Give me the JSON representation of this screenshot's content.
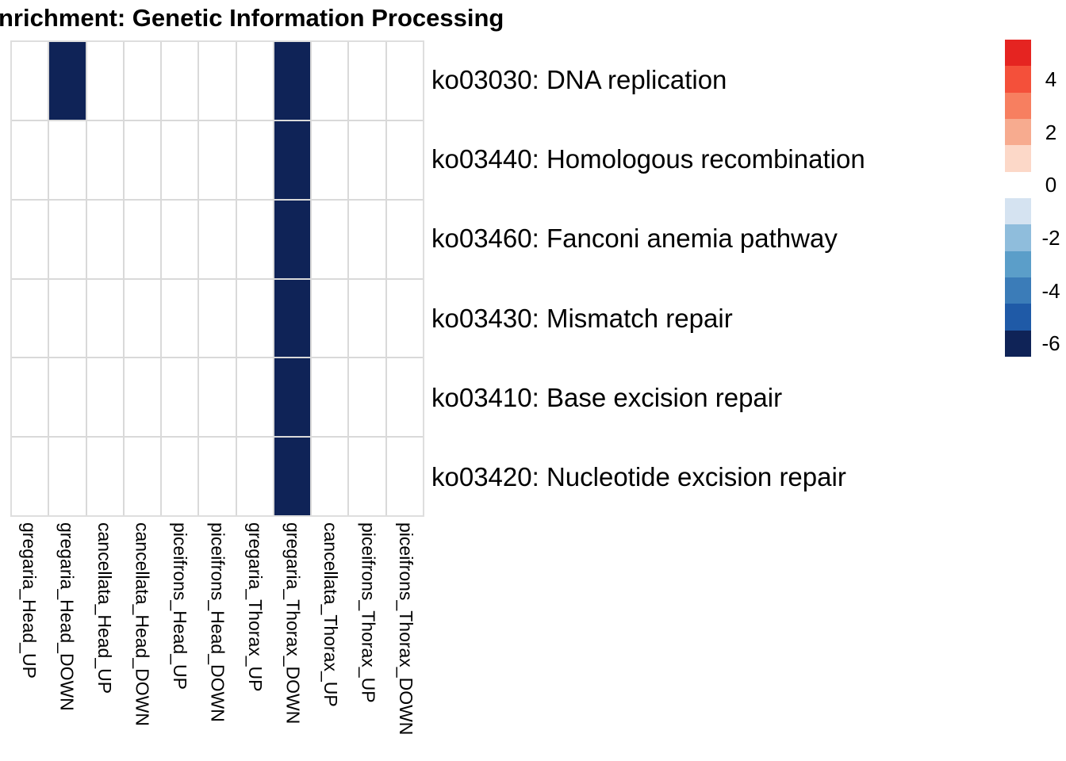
{
  "chart_data": {
    "type": "heatmap",
    "title": "nrichment: Genetic Information Processing",
    "columns": [
      "gregaria_Head_UP",
      "gregaria_Head_DOWN",
      "cancellata_Head_UP",
      "cancellata_Head_DOWN",
      "piceifrons_Head_UP",
      "piceifrons_Head_DOWN",
      "gregaria_Thorax_UP",
      "gregaria_Thorax_DOWN",
      "cancellata_Thorax_UP",
      "piceifrons_Thorax_UP",
      "piceifrons_Thorax_DOWN"
    ],
    "rows": [
      "ko03030: DNA replication",
      "ko03440: Homologous recombination",
      "ko03460: Fanconi anemia pathway",
      "ko03430: Mismatch repair",
      "ko03410: Base excision repair",
      "ko03420: Nucleotide excision repair"
    ],
    "matrix": [
      [
        null,
        -6,
        null,
        null,
        null,
        null,
        null,
        -6,
        null,
        null,
        null
      ],
      [
        null,
        null,
        null,
        null,
        null,
        null,
        null,
        -6,
        null,
        null,
        null
      ],
      [
        null,
        null,
        null,
        null,
        null,
        null,
        null,
        -6,
        null,
        null,
        null
      ],
      [
        null,
        null,
        null,
        null,
        null,
        null,
        null,
        -6,
        null,
        null,
        null
      ],
      [
        null,
        null,
        null,
        null,
        null,
        null,
        null,
        -6,
        null,
        null,
        null
      ],
      [
        null,
        null,
        null,
        null,
        null,
        null,
        null,
        -6,
        null,
        null,
        null
      ]
    ],
    "colors": {
      "filled_cell": "#0F2357",
      "empty_cell": "#FFFFFF",
      "grid_line": "#D9D9D9"
    },
    "legend": {
      "block_values": [
        5,
        4,
        3,
        2,
        1,
        0,
        -1,
        -2,
        -3,
        -4,
        -5,
        -6
      ],
      "block_colors": [
        "#E52421",
        "#F4503A",
        "#F77F60",
        "#F7AB8F",
        "#FCD8C8",
        "#FFFFFF",
        "#D5E3F1",
        "#8FBDDC",
        "#5B9EC9",
        "#3B7CB8",
        "#1F5AA7",
        "#0F2357"
      ],
      "tick_values": [
        4,
        2,
        0,
        -2,
        -4,
        -6
      ],
      "tick_labels": [
        "4",
        "2",
        "0",
        "-2",
        "-4",
        "-6"
      ]
    },
    "grid": true,
    "legend_position": "right"
  }
}
